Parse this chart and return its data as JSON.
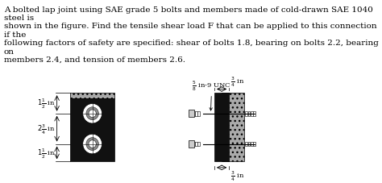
{
  "title_text": "A bolted lap joint using SAE grade 5 bolts and members made of cold-drawn SAE 1040 steel is\nshown in the figure. Find the tensile shear load F that can be applied to this connection if the\nfollowing factors of safety are specified: shear of bolts 1.8, bearing on bolts 2.2, bearing on\nmembers 2.4, and tension of members 2.6.",
  "bg_color": "#ffffff",
  "plate_color": "#111111",
  "texture_color": "#aaaaaa",
  "bolt_white": "#ffffff",
  "dim_color": "#000000",
  "font_size_body": 7.5,
  "font_size_dim": 6.5
}
